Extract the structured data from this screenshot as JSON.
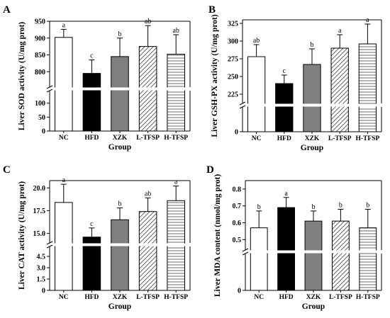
{
  "chart_data": [
    {
      "panel": "A",
      "type": "bar",
      "categories": [
        "NC",
        "HFD",
        "XZK",
        "L-TFSP",
        "H-TFSP"
      ],
      "values": [
        902,
        795,
        845,
        875,
        852
      ],
      "errors": [
        24,
        40,
        55,
        62,
        58
      ],
      "letters": [
        "a",
        "c",
        "b",
        "ab",
        "ab"
      ],
      "xlabel": "Group",
      "ylabel": "Liver SOD activity (U/mg prot)",
      "upper_range": [
        750,
        950
      ],
      "upper_ticks": [
        "800",
        "850",
        "900",
        "950"
      ],
      "lower_range": [
        0,
        150
      ],
      "lower_ticks": [
        "0",
        "50",
        "100"
      ]
    },
    {
      "panel": "B",
      "type": "bar",
      "categories": [
        "NC",
        "HFD",
        "XZK",
        "L-TFSP",
        "H-TFSP"
      ],
      "values": [
        278,
        240,
        267,
        290,
        296
      ],
      "errors": [
        17,
        12,
        22,
        19,
        28
      ],
      "letters": [
        "ab",
        "c",
        "b",
        "a",
        "a"
      ],
      "xlabel": "Group",
      "ylabel": "Liver GSH-PX activity (U/mg prot)",
      "upper_range": [
        210,
        330
      ],
      "upper_ticks": [
        "225",
        "250",
        "275",
        "300",
        "325"
      ],
      "lower_range": [
        0,
        15
      ],
      "lower_ticks": [
        "0"
      ]
    },
    {
      "panel": "C",
      "type": "bar",
      "categories": [
        "NC",
        "HFD",
        "XZK",
        "L-TFSP",
        "H-TFSP"
      ],
      "values": [
        18.4,
        14.6,
        16.5,
        17.4,
        18.6
      ],
      "errors": [
        2.0,
        1.0,
        1.3,
        1.5,
        1.6
      ],
      "letters": [
        "a",
        "c",
        "b",
        "ab",
        "a"
      ],
      "xlabel": "Group",
      "ylabel": "Liver CAT activity (U/mg prot)",
      "upper_range": [
        13.8,
        20.8
      ],
      "upper_ticks": [
        "15.0",
        "17.5",
        "20.0"
      ],
      "lower_range": [
        0,
        6
      ],
      "lower_ticks": [
        "0",
        "1.5",
        "3.0",
        "4.5"
      ]
    },
    {
      "panel": "D",
      "type": "bar",
      "categories": [
        "NC",
        "HFD",
        "XZK",
        "L-TFSP",
        "H-TFSP"
      ],
      "values": [
        0.57,
        0.69,
        0.61,
        0.61,
        0.57
      ],
      "errors": [
        0.1,
        0.06,
        0.06,
        0.07,
        0.11
      ],
      "letters": [
        "b",
        "a",
        "b",
        "b",
        "b"
      ],
      "xlabel": "Group",
      "ylabel": "Liver MDA content (nmol/mg prot)",
      "upper_range": [
        0.43,
        0.85
      ],
      "upper_ticks": [
        "0.5",
        "0.6",
        "0.7",
        "0.8"
      ],
      "lower_range": [
        0,
        0.03
      ],
      "lower_ticks": [
        "0"
      ]
    }
  ],
  "bar_styles": [
    {
      "fill": "#ffffff",
      "pattern": "none"
    },
    {
      "fill": "#000000",
      "pattern": "none"
    },
    {
      "fill": "#808080",
      "pattern": "none"
    },
    {
      "fill": "#ffffff",
      "pattern": "diagonal"
    },
    {
      "fill": "#ffffff",
      "pattern": "horizontal"
    }
  ]
}
